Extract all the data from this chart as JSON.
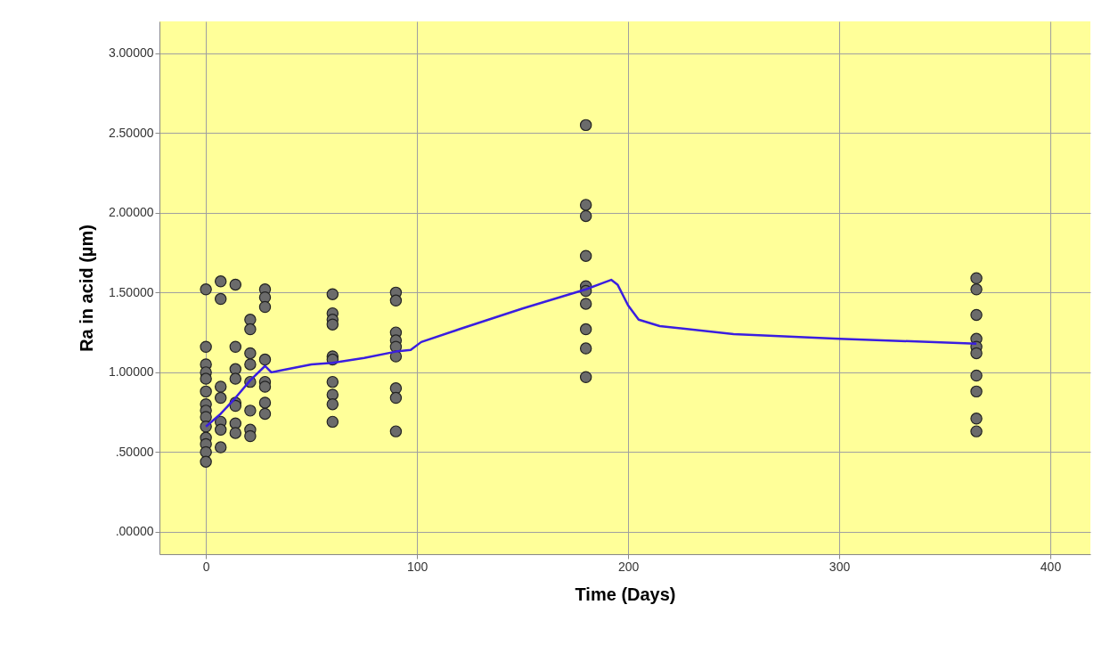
{
  "chart_data": {
    "type": "scatter",
    "xlabel": "Time (Days)",
    "ylabel": "Ra in acid (µm)",
    "xlim": [
      -22,
      419
    ],
    "ylim": [
      -0.14,
      3.2
    ],
    "xticks": [
      0,
      100,
      200,
      300,
      400
    ],
    "yticks": [
      {
        "value": 0,
        "label": ".00000"
      },
      {
        "value": 0.5,
        "label": ".50000"
      },
      {
        "value": 1,
        "label": "1.00000"
      },
      {
        "value": 1.5,
        "label": "1.50000"
      },
      {
        "value": 2,
        "label": "2.00000"
      },
      {
        "value": 2.5,
        "label": "2.50000"
      },
      {
        "value": 3,
        "label": "3.00000"
      }
    ],
    "grid": true,
    "series": [
      {
        "marker": "circle",
        "color": "#6b6b6b",
        "x": [
          0,
          0,
          0,
          0,
          0,
          0,
          0,
          0,
          0,
          0,
          0,
          0,
          0,
          0,
          7,
          7,
          7,
          7,
          7,
          7,
          7,
          14,
          14,
          14,
          14,
          14,
          14,
          14,
          14,
          21,
          21,
          21,
          21,
          21,
          21,
          21,
          21,
          28,
          28,
          28,
          28,
          28,
          28,
          28,
          28,
          60,
          60,
          60,
          60,
          60,
          60,
          60,
          60,
          60,
          60,
          90,
          90,
          90,
          90,
          90,
          90,
          90,
          90,
          90,
          180,
          180,
          180,
          180,
          180,
          180,
          180,
          180,
          180,
          180,
          365,
          365,
          365,
          365,
          365,
          365,
          365,
          365,
          365,
          365
        ],
        "values": [
          1.52,
          1.16,
          1.05,
          1.0,
          0.96,
          0.88,
          0.8,
          0.76,
          0.72,
          0.66,
          0.59,
          0.55,
          0.5,
          0.44,
          1.57,
          1.46,
          0.91,
          0.84,
          0.69,
          0.64,
          0.53,
          1.55,
          1.16,
          1.02,
          0.96,
          0.81,
          0.79,
          0.68,
          0.62,
          1.33,
          1.27,
          1.12,
          1.05,
          0.94,
          0.76,
          0.64,
          0.6,
          1.52,
          1.47,
          1.41,
          1.08,
          0.94,
          0.91,
          0.81,
          0.74,
          1.49,
          1.37,
          1.33,
          1.3,
          1.1,
          1.08,
          0.94,
          0.86,
          0.8,
          0.69,
          1.5,
          1.45,
          1.25,
          1.2,
          1.16,
          1.1,
          0.9,
          0.84,
          0.63,
          2.55,
          2.05,
          1.98,
          1.73,
          1.54,
          1.51,
          1.43,
          1.27,
          1.15,
          0.97,
          1.59,
          1.52,
          1.36,
          1.21,
          1.16,
          1.12,
          0.98,
          0.88,
          0.71,
          0.63
        ]
      },
      {
        "type": "line",
        "color": "#3a1ee0",
        "x": [
          0,
          7,
          14,
          21,
          28,
          31,
          35,
          50,
          60,
          75,
          90,
          97,
          102,
          120,
          150,
          180,
          188,
          192,
          195,
          200,
          205,
          215,
          250,
          300,
          365
        ],
        "values": [
          0.66,
          0.74,
          0.84,
          0.95,
          1.04,
          1.0,
          1.01,
          1.05,
          1.06,
          1.09,
          1.13,
          1.14,
          1.19,
          1.27,
          1.4,
          1.52,
          1.56,
          1.58,
          1.55,
          1.42,
          1.33,
          1.29,
          1.24,
          1.21,
          1.18
        ]
      }
    ]
  }
}
